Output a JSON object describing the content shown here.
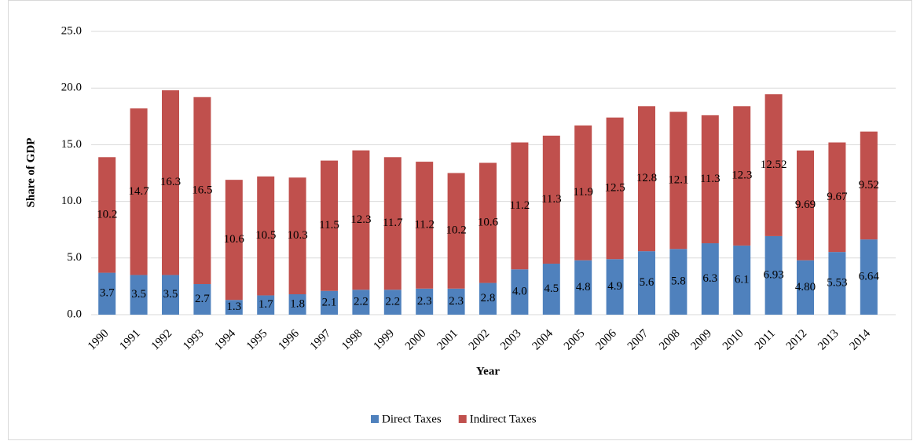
{
  "chart_data": {
    "type": "stacked_bar",
    "x_label": "Year",
    "y_label": "Share of GDP",
    "categories": [
      "1990",
      "1991",
      "1992",
      "1993",
      "1994",
      "1995",
      "1996",
      "1997",
      "1998",
      "1999",
      "2000",
      "2001",
      "2002",
      "2003",
      "2004",
      "2005",
      "2006",
      "2007",
      "2008",
      "2009",
      "2010",
      "2011",
      "2012",
      "2013",
      "2014"
    ],
    "series": [
      {
        "name": "Direct Taxes",
        "color": "#4f81bd",
        "values": [
          3.7,
          3.5,
          3.5,
          2.7,
          1.3,
          1.7,
          1.8,
          2.1,
          2.2,
          2.2,
          2.3,
          2.3,
          2.8,
          4.0,
          4.5,
          4.8,
          4.9,
          5.6,
          5.8,
          6.3,
          6.1,
          6.93,
          4.8,
          5.53,
          6.64
        ],
        "value_labels": [
          "3.7",
          "3.5",
          "3.5",
          "2.7",
          "1.3",
          "1.7",
          "1.8",
          "2.1",
          "2.2",
          "2.2",
          "2.3",
          "2.3",
          "2.8",
          "4.0",
          "4.5",
          "4.8",
          "4.9",
          "5.6",
          "5.8",
          "6.3",
          "6.1",
          "6.93",
          "4.80",
          "5.53",
          "6.64"
        ]
      },
      {
        "name": "Indirect Taxes",
        "color": "#c0504d",
        "values": [
          10.2,
          14.7,
          16.3,
          16.5,
          10.6,
          10.5,
          10.3,
          11.5,
          12.3,
          11.7,
          11.2,
          10.2,
          10.6,
          11.2,
          11.3,
          11.9,
          12.5,
          12.8,
          12.1,
          11.3,
          12.3,
          12.52,
          9.69,
          9.67,
          9.52
        ],
        "value_labels": [
          "10.2",
          "14.7",
          "16.3",
          "16.5",
          "10.6",
          "10.5",
          "10.3",
          "11.5",
          "12.3",
          "11.7",
          "11.2",
          "10.2",
          "10.6",
          "11.2",
          "11.3",
          "11.9",
          "12.5",
          "12.8",
          "12.1",
          "11.3",
          "12.3",
          "12.52",
          "9.69",
          "9.67",
          "9.52"
        ]
      }
    ],
    "ylim": [
      0,
      25
    ],
    "yticks": [
      {
        "value": 0,
        "label": "0.0"
      },
      {
        "value": 5,
        "label": "5.0"
      },
      {
        "value": 10,
        "label": "10.0"
      },
      {
        "value": 15,
        "label": "15.0"
      },
      {
        "value": 20,
        "label": "20.0"
      },
      {
        "value": 25,
        "label": "25.0"
      }
    ],
    "grid": true,
    "legend": "bottom"
  }
}
